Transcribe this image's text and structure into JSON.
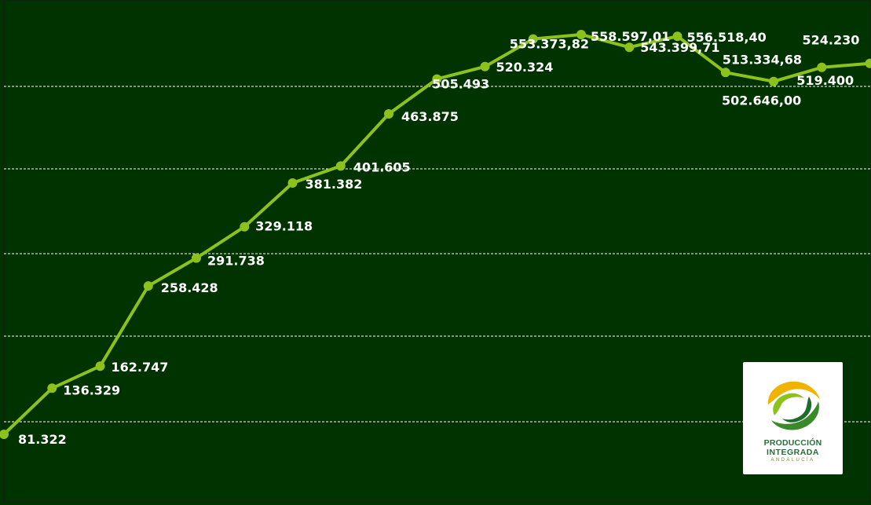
{
  "chart_data": {
    "type": "line",
    "title": "",
    "xlabel": "",
    "ylabel": "",
    "grid": true,
    "colors": {
      "background": "#003300",
      "line": "#8cc21b",
      "grid": "#ffffff",
      "labels": "#ffffff"
    },
    "series": [
      {
        "values": [
          81322,
          136329,
          162747,
          258428,
          291738,
          329118,
          381382,
          401605,
          463875,
          505493,
          520324,
          553373.82,
          558597.01,
          543399.71,
          556518.4,
          513334.68,
          502646.0,
          519400,
          524230
        ],
        "labels": [
          "81.322",
          "136.329",
          "162.747",
          "258.428",
          "291.738",
          "329.118",
          "381.382",
          "401.605",
          "463.875",
          "505.493",
          "520.324",
          "553.373,82",
          "558.597,01",
          "543.399,71",
          "556.518,40",
          "513.334,68",
          "502.646,00",
          "519.400",
          "524.230"
        ]
      }
    ]
  },
  "logo": {
    "line1": "PRODUCCIÓN",
    "line2": "INTEGRADA",
    "line3": "ANDALUCÍA"
  }
}
